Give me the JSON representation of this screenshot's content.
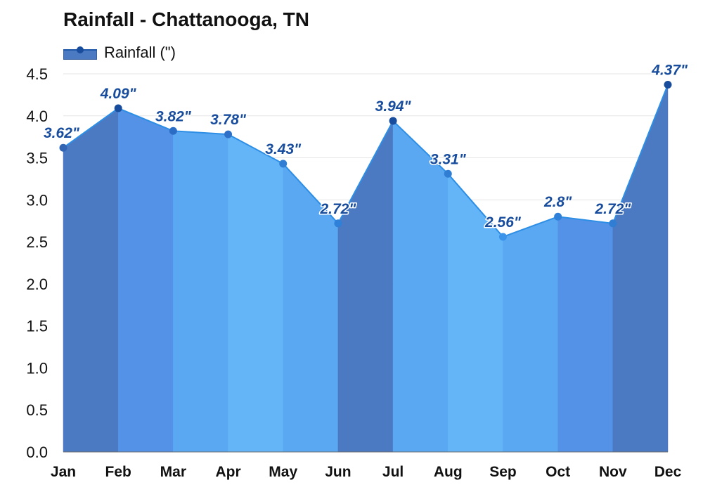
{
  "chart_data": {
    "type": "area",
    "title": "Rainfall - Chattanooga, TN",
    "categories": [
      "Jan",
      "Feb",
      "Mar",
      "Apr",
      "May",
      "Jun",
      "Jul",
      "Aug",
      "Sep",
      "Oct",
      "Nov",
      "Dec"
    ],
    "series": [
      {
        "name": "Rainfall (\")",
        "values": [
          3.62,
          4.09,
          3.82,
          3.78,
          3.43,
          2.72,
          3.94,
          3.31,
          2.56,
          2.8,
          2.72,
          4.37
        ]
      }
    ],
    "data_labels": [
      "3.62\"",
      "4.09\"",
      "3.82\"",
      "3.78\"",
      "3.43\"",
      "2.72\"",
      "3.94\"",
      "3.31\"",
      "2.56\"",
      "2.8\"",
      "2.72\"",
      "4.37\""
    ],
    "y_ticks": [
      "0.0",
      "0.5",
      "1.0",
      "1.5",
      "2.0",
      "2.5",
      "3.0",
      "3.5",
      "4.0",
      "4.5"
    ],
    "ylim": [
      0,
      4.5
    ],
    "xlabel": "",
    "ylabel": "",
    "grid": true,
    "legend_position": "top-left",
    "segment_colors": [
      "#4b79c2",
      "#5392e6",
      "#5aa8f2",
      "#63b5f7",
      "#5aa8f2",
      "#4b79c2",
      "#5aa8f2",
      "#63b5f7",
      "#5aa8f2",
      "#5392e6",
      "#4b79c2"
    ],
    "marker_colors": [
      "#3266b4",
      "#184c9d",
      "#2b6cc5",
      "#2e70c8",
      "#2f7ed4",
      "#2f80d8",
      "#184c9d",
      "#2f7ed4",
      "#3b94e9",
      "#2f80d8",
      "#2f7ed4",
      "#184c9d"
    ],
    "line_color": "#2d8ee6",
    "label_color": "#184c9d",
    "grid_color": "#e5e5e5",
    "axis_color": "#6b6b6b"
  }
}
